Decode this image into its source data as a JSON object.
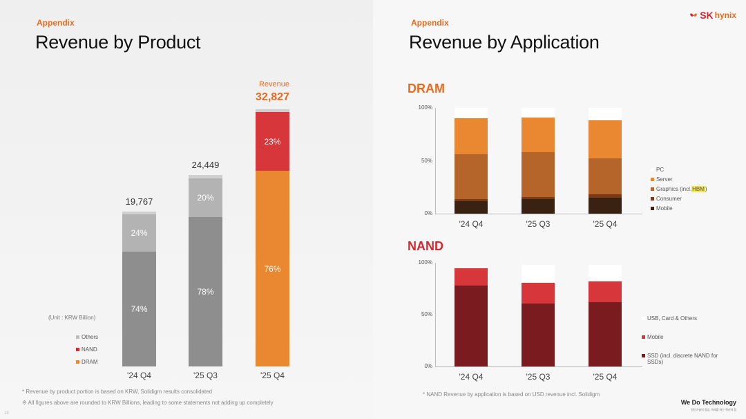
{
  "left": {
    "appendix": "Appendix",
    "title": "Revenue by Product",
    "unit": "(Unit : KRW Billion)",
    "legend": [
      {
        "label": "Others",
        "color": "#bdbdbd"
      },
      {
        "label": "NAND",
        "color": "#d7282f"
      },
      {
        "label": "DRAM",
        "color": "#ea8731"
      }
    ],
    "revenue_label": "Revenue",
    "notes": [
      "* Revenue by product portion is based on KRW, Solidigm results consolidated",
      "※ All figures above are rounded to KRW Billions, leading to some statements not adding up completely"
    ],
    "page_num": "18"
  },
  "right": {
    "appendix": "Appendix",
    "title": "Revenue by Application",
    "dram_label": "DRAM",
    "nand_label": "NAND",
    "y_ticks": [
      "100%",
      "50%",
      "0%"
    ],
    "dram_legend": [
      {
        "label": "PC",
        "color": "#ffffff"
      },
      {
        "label": "Server",
        "color": "#ea8731"
      },
      {
        "label": "Graphics (incl. ",
        "hbm": "HBM",
        "suffix": ")",
        "color": "#b5652a"
      },
      {
        "label": "Consumer",
        "color": "#7a3a16"
      },
      {
        "label": "Mobile",
        "color": "#3a2212"
      }
    ],
    "nand_legend": [
      {
        "label": "USB, Card & Others",
        "color": "#ffffff"
      },
      {
        "label": "Mobile",
        "color": "#d7363a"
      },
      {
        "label": "SSD (incl. discrete NAND for SSDs)",
        "color": "#7a1b1f"
      }
    ],
    "note": "* NAND Revenue by application is based on USD revenue incl. Solidigm"
  },
  "branding": {
    "logo_sk": "SK",
    "logo_hynix": "hynix",
    "tagline": "We Do Technology",
    "tagline_sub": "첨단기술의 중심, 미래를 여는 혁신의 힘"
  },
  "chart_data": [
    {
      "type": "bar",
      "title": "Revenue by Product",
      "categories": [
        "'24 Q4",
        "'25 Q3",
        "'25 Q4"
      ],
      "totals": [
        19767,
        24449,
        32827
      ],
      "totals_text": [
        "19,767",
        "24,449",
        "32,827"
      ],
      "ylim": [
        0,
        32827
      ],
      "series": [
        {
          "name": "DRAM",
          "values": [
            74,
            78,
            76
          ],
          "labels": [
            "74%",
            "78%",
            "76%"
          ]
        },
        {
          "name": "NAND",
          "values": [
            24,
            20,
            23
          ],
          "labels": [
            "24%",
            "20%",
            "23%"
          ]
        },
        {
          "name": "Others",
          "values": [
            2,
            2,
            1
          ]
        }
      ]
    },
    {
      "type": "bar",
      "title": "DRAM",
      "categories": [
        "'24 Q4",
        "'25 Q3",
        "'25 Q4"
      ],
      "ylim": [
        0,
        100
      ],
      "series": [
        {
          "name": "Mobile",
          "values": [
            12,
            14,
            15
          ]
        },
        {
          "name": "Consumer",
          "values": [
            2,
            2,
            3
          ]
        },
        {
          "name": "Graphics (incl. HBM)",
          "values": [
            42,
            42,
            34
          ]
        },
        {
          "name": "Server",
          "values": [
            34,
            33,
            36
          ]
        },
        {
          "name": "PC",
          "values": [
            10,
            9,
            12
          ]
        }
      ]
    },
    {
      "type": "bar",
      "title": "NAND",
      "categories": [
        "'24 Q4",
        "'25 Q3",
        "'25 Q4"
      ],
      "ylim": [
        0,
        100
      ],
      "series": [
        {
          "name": "SSD (incl. discrete NAND for SSDs)",
          "values": [
            78,
            61,
            62
          ]
        },
        {
          "name": "Mobile",
          "values": [
            17,
            20,
            20
          ]
        },
        {
          "name": "USB, Card & Others",
          "values": [
            0,
            17,
            16
          ]
        }
      ]
    }
  ]
}
